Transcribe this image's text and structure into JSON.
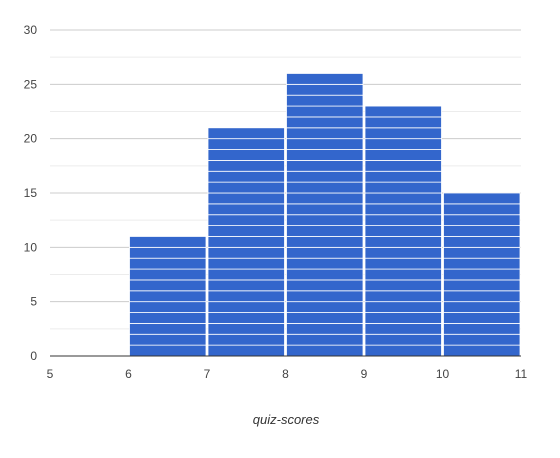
{
  "chart_data": {
    "type": "bar",
    "title": "",
    "xlabel": "quiz-scores",
    "ylabel": "",
    "bins": [
      {
        "x0": 5,
        "x1": 6,
        "value": 0
      },
      {
        "x0": 6,
        "x1": 7,
        "value": 11
      },
      {
        "x0": 7,
        "x1": 8,
        "value": 21
      },
      {
        "x0": 8,
        "x1": 9,
        "value": 26
      },
      {
        "x0": 9,
        "x1": 10,
        "value": 23
      },
      {
        "x0": 10,
        "x1": 11,
        "value": 15
      }
    ],
    "xlim": [
      5,
      11
    ],
    "ylim": [
      0,
      30
    ],
    "x_ticks": [
      "5",
      "6",
      "7",
      "8",
      "9",
      "10",
      "11"
    ],
    "y_ticks": [
      "0",
      "5",
      "10",
      "15",
      "20",
      "25",
      "30"
    ],
    "grid": true,
    "bar_color": "#3366cc",
    "unit_divider_color": "#ffffff"
  }
}
